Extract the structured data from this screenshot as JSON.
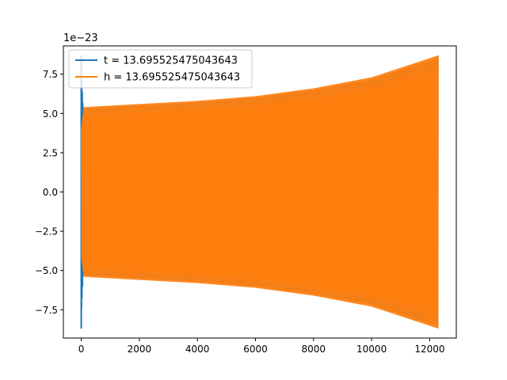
{
  "chart_data": {
    "type": "line",
    "title": "",
    "xlabel": "",
    "ylabel": "",
    "offset_text": "1e−23",
    "xlim": [
      -615,
      12915
    ],
    "ylim": [
      -9.3,
      9.3
    ],
    "x_ticks": [
      0,
      2000,
      4000,
      6000,
      8000,
      10000,
      12000
    ],
    "x_tick_labels": [
      "0",
      "2000",
      "4000",
      "6000",
      "8000",
      "10000",
      "12000"
    ],
    "y_ticks": [
      -7.5,
      -5.0,
      -2.5,
      0.0,
      2.5,
      5.0,
      7.5
    ],
    "y_tick_labels": [
      "−7.5",
      "−5.0",
      "−2.5",
      "0.0",
      "2.5",
      "5.0",
      "7.5"
    ],
    "grid": false,
    "legend_position": "upper-left",
    "series": [
      {
        "name": "t = 13.695525475043643",
        "color": "#1f77b4",
        "x_range": [
          0,
          12300
        ],
        "envelope": {
          "x": [
            0,
            80,
            2000,
            4000,
            6000,
            8000,
            10000,
            12300
          ],
          "amp": [
            8.7,
            5.4,
            5.6,
            5.8,
            6.1,
            6.6,
            7.3,
            8.7
          ]
        },
        "spike": {
          "x": 0,
          "min": -8.7,
          "max": 8.7
        }
      },
      {
        "name": "h = 13.695525475043643",
        "color": "#ff7f0e",
        "x_range": [
          0,
          12300
        ],
        "envelope": {
          "x": [
            0,
            80,
            2000,
            4000,
            6000,
            8000,
            10000,
            12300
          ],
          "amp": [
            4.1,
            5.4,
            5.6,
            5.8,
            6.1,
            6.6,
            7.3,
            8.7
          ]
        }
      }
    ]
  }
}
